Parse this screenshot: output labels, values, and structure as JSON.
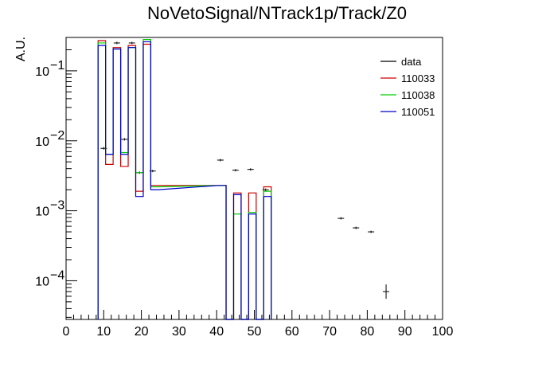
{
  "chart_data": {
    "type": "step-histogram",
    "title": "NoVetoSignal/NTrack1p/Track/Z0",
    "xlabel": "",
    "ylabel": "A.U.",
    "xlim": [
      0,
      100
    ],
    "ylim": [
      2.8e-05,
      0.3
    ],
    "yscale": "log",
    "grid": false,
    "legend_position": "top-right",
    "x_ticks": [
      {
        "value": 0,
        "label": "0"
      },
      {
        "value": 10,
        "label": "10"
      },
      {
        "value": 20,
        "label": "20"
      },
      {
        "value": 30,
        "label": "30"
      },
      {
        "value": 40,
        "label": "40"
      },
      {
        "value": 50,
        "label": "50"
      },
      {
        "value": 60,
        "label": "60"
      },
      {
        "value": 70,
        "label": "70"
      },
      {
        "value": 80,
        "label": "80"
      },
      {
        "value": 90,
        "label": "90"
      },
      {
        "value": 100,
        "label": "100"
      }
    ],
    "y_ticks": [
      {
        "value": 0.1,
        "base": "10",
        "exp": "−1"
      },
      {
        "value": 0.01,
        "base": "10",
        "exp": "−2"
      },
      {
        "value": 0.001,
        "base": "10",
        "exp": "−3"
      },
      {
        "value": 0.0001,
        "base": "10",
        "exp": "−4"
      }
    ],
    "bin_edges": [
      0,
      4,
      8,
      12,
      16,
      20,
      24,
      28,
      32,
      36,
      40,
      44,
      48,
      52,
      56,
      60,
      64,
      68,
      72,
      76,
      80,
      84,
      88,
      92,
      96,
      100
    ],
    "series": [
      {
        "name": "data",
        "style": "points",
        "color": "#000000",
        "points": [
          {
            "x": 10,
            "y": 0.0078
          },
          {
            "x": 13.5,
            "y": 0.25
          },
          {
            "x": 15.5,
            "y": 0.0105
          },
          {
            "x": 17.5,
            "y": 0.25
          },
          {
            "x": 19.5,
            "y": 0.0035
          },
          {
            "x": 23,
            "y": 0.0037
          },
          {
            "x": 41,
            "y": 0.0053
          },
          {
            "x": 45,
            "y": 0.0038
          },
          {
            "x": 49,
            "y": 0.0039
          },
          {
            "x": 53,
            "y": 0.002
          },
          {
            "x": 73,
            "y": 0.00078
          },
          {
            "x": 77,
            "y": 0.00057
          },
          {
            "x": 81,
            "y": 0.0005
          },
          {
            "x": 85,
            "y": 7e-05
          }
        ]
      },
      {
        "name": "110033",
        "style": "step",
        "color": "#cc0000",
        "bins": [
          {
            "lo": 8.5,
            "hi": 10.5,
            "y": 0.27
          },
          {
            "lo": 10.5,
            "hi": 12.5,
            "y": 0.0046
          },
          {
            "lo": 12.5,
            "hi": 14.5,
            "y": 0.215
          },
          {
            "lo": 14.5,
            "hi": 16.5,
            "y": 0.0043
          },
          {
            "lo": 16.5,
            "hi": 18.5,
            "y": 0.23
          },
          {
            "lo": 18.5,
            "hi": 20.5,
            "y": 0.0019
          },
          {
            "lo": 20.5,
            "hi": 22.5,
            "y": 0.24
          },
          {
            "lo": 22.5,
            "hi": 24.5,
            "y": 0.0023
          },
          {
            "lo": 40.5,
            "hi": 42.5,
            "y": 0.0023
          },
          {
            "lo": 42.5,
            "hi": 44.5,
            "y": 0.0
          },
          {
            "lo": 44.5,
            "hi": 46.5,
            "y": 0.0018
          },
          {
            "lo": 46.5,
            "hi": 48.5,
            "y": 0.0
          },
          {
            "lo": 48.5,
            "hi": 50.5,
            "y": 0.0018
          },
          {
            "lo": 50.5,
            "hi": 52.5,
            "y": 0.0
          },
          {
            "lo": 52.5,
            "hi": 54.5,
            "y": 0.0022
          }
        ]
      },
      {
        "name": "110038",
        "style": "step",
        "color": "#00cc00",
        "bins": [
          {
            "lo": 8.5,
            "hi": 10.5,
            "y": 0.25
          },
          {
            "lo": 10.5,
            "hi": 12.5,
            "y": 0.0064
          },
          {
            "lo": 12.5,
            "hi": 14.5,
            "y": 0.205
          },
          {
            "lo": 14.5,
            "hi": 16.5,
            "y": 0.0068
          },
          {
            "lo": 16.5,
            "hi": 18.5,
            "y": 0.215
          },
          {
            "lo": 18.5,
            "hi": 20.5,
            "y": 0.0035
          },
          {
            "lo": 20.5,
            "hi": 22.5,
            "y": 0.28
          },
          {
            "lo": 22.5,
            "hi": 24.5,
            "y": 0.0022
          },
          {
            "lo": 40.5,
            "hi": 42.5,
            "y": 0.0023
          },
          {
            "lo": 42.5,
            "hi": 44.5,
            "y": 0.0
          },
          {
            "lo": 44.5,
            "hi": 46.5,
            "y": 0.0009
          },
          {
            "lo": 46.5,
            "hi": 48.5,
            "y": 0.0
          },
          {
            "lo": 48.5,
            "hi": 50.5,
            "y": 0.00095
          },
          {
            "lo": 50.5,
            "hi": 52.5,
            "y": 0.0
          },
          {
            "lo": 52.5,
            "hi": 54.5,
            "y": 0.0019
          }
        ]
      },
      {
        "name": "110051",
        "style": "step",
        "color": "#0000cc",
        "bins": [
          {
            "lo": 8.5,
            "hi": 10.5,
            "y": 0.23
          },
          {
            "lo": 10.5,
            "hi": 12.5,
            "y": 0.0064
          },
          {
            "lo": 12.5,
            "hi": 14.5,
            "y": 0.205
          },
          {
            "lo": 14.5,
            "hi": 16.5,
            "y": 0.0064
          },
          {
            "lo": 16.5,
            "hi": 18.5,
            "y": 0.215
          },
          {
            "lo": 18.5,
            "hi": 20.5,
            "y": 0.0016
          },
          {
            "lo": 20.5,
            "hi": 22.5,
            "y": 0.26
          },
          {
            "lo": 22.5,
            "hi": 24.5,
            "y": 0.002
          },
          {
            "lo": 40.5,
            "hi": 42.5,
            "y": 0.0023
          },
          {
            "lo": 42.5,
            "hi": 44.5,
            "y": 0.0
          },
          {
            "lo": 44.5,
            "hi": 46.5,
            "y": 0.0017
          },
          {
            "lo": 46.5,
            "hi": 48.5,
            "y": 0.0
          },
          {
            "lo": 48.5,
            "hi": 50.5,
            "y": 0.0009
          },
          {
            "lo": 50.5,
            "hi": 52.5,
            "y": 0.0
          },
          {
            "lo": 52.5,
            "hi": 54.5,
            "y": 0.0016
          }
        ]
      }
    ]
  }
}
